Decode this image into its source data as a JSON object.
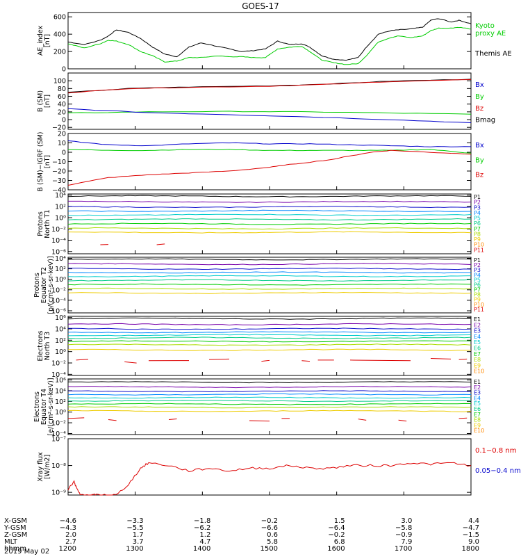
{
  "title": "GOES-17",
  "date_label": "2019 May 02",
  "colors": {
    "black": "#000000",
    "green": "#00cc00",
    "blue": "#0000cc",
    "red": "#dd0000",
    "p_cols": [
      "#000000",
      "#7700aa",
      "#1111cc",
      "#0088ff",
      "#00cccc",
      "#00cc88",
      "#00cc00",
      "#aadd00",
      "#eecc00",
      "#ff8800",
      "#dd0000"
    ]
  },
  "chart_data": [
    {
      "id": "ae",
      "type": "line",
      "ylabel": [
        "AE_index",
        "[nT]"
      ],
      "ylim": [
        0,
        650
      ],
      "yticks": [
        0,
        200,
        400,
        600
      ],
      "ytick_labels": [
        "0",
        "200",
        "400",
        "600"
      ],
      "legend": [
        {
          "text": "Kyoto",
          "color": "green"
        },
        {
          "text": "proxy AE",
          "color": "green"
        },
        {
          "text": "Themis AE",
          "color": "black"
        }
      ],
      "series": [
        {
          "name": "Themis AE",
          "color": "black",
          "x": [
            0,
            0.04,
            0.08,
            0.1,
            0.12,
            0.15,
            0.18,
            0.21,
            0.24,
            0.27,
            0.3,
            0.33,
            0.37,
            0.4,
            0.43,
            0.46,
            0.49,
            0.52,
            0.55,
            0.58,
            0.6,
            0.63,
            0.66,
            0.69,
            0.72,
            0.74,
            0.77,
            0.8,
            0.82,
            0.85,
            0.88,
            0.9,
            0.92,
            0.95,
            0.97,
            1.0
          ],
          "y": [
            310,
            280,
            330,
            380,
            450,
            420,
            350,
            250,
            170,
            140,
            250,
            300,
            260,
            230,
            200,
            210,
            230,
            320,
            280,
            290,
            250,
            150,
            110,
            100,
            130,
            250,
            400,
            440,
            450,
            460,
            480,
            560,
            580,
            540,
            560,
            520
          ]
        },
        {
          "name": "Kyoto proxy AE",
          "color": "green",
          "x": [
            0,
            0.04,
            0.08,
            0.1,
            0.12,
            0.15,
            0.18,
            0.21,
            0.24,
            0.27,
            0.3,
            0.33,
            0.37,
            0.4,
            0.43,
            0.46,
            0.49,
            0.52,
            0.55,
            0.58,
            0.6,
            0.63,
            0.66,
            0.69,
            0.72,
            0.74,
            0.77,
            0.8,
            0.82,
            0.85,
            0.88,
            0.9,
            0.92,
            0.95,
            0.97,
            1.0
          ],
          "y": [
            290,
            240,
            290,
            330,
            320,
            280,
            200,
            150,
            80,
            90,
            130,
            130,
            150,
            140,
            140,
            130,
            130,
            230,
            250,
            260,
            200,
            100,
            70,
            50,
            60,
            150,
            310,
            360,
            380,
            360,
            380,
            440,
            470,
            470,
            480,
            460
          ]
        }
      ]
    },
    {
      "id": "bsm",
      "type": "line",
      "ylabel": [
        "B (SM)",
        "[nT]"
      ],
      "ylim": [
        -25,
        120
      ],
      "yticks": [
        -20,
        0,
        20,
        40,
        60,
        80,
        100
      ],
      "ytick_labels": [
        "−20",
        "0",
        "20",
        "40",
        "60",
        "80",
        "100"
      ],
      "legend": [
        {
          "text": "Bx",
          "color": "blue"
        },
        {
          "text": "By",
          "color": "green"
        },
        {
          "text": "Bz",
          "color": "red"
        },
        {
          "text": "Bmag",
          "color": "black"
        }
      ],
      "series": [
        {
          "name": "Bmag",
          "color": "black",
          "x": [
            0,
            0.15,
            0.3,
            0.5,
            0.65,
            0.8,
            1.0
          ],
          "y": [
            70,
            80,
            84,
            87,
            92,
            99,
            104
          ]
        },
        {
          "name": "Bz",
          "color": "red",
          "x": [
            0,
            0.15,
            0.3,
            0.5,
            0.65,
            0.8,
            1.0
          ],
          "y": [
            69,
            80,
            83,
            86,
            91,
            98,
            103
          ]
        },
        {
          "name": "By",
          "color": "green",
          "x": [
            0,
            0.2,
            0.4,
            0.6,
            0.8,
            1.0
          ],
          "y": [
            17,
            20,
            21,
            20,
            17,
            14
          ]
        },
        {
          "name": "Bx",
          "color": "blue",
          "x": [
            0,
            0.2,
            0.4,
            0.6,
            0.8,
            1.0
          ],
          "y": [
            28,
            18,
            13,
            7,
            0,
            -8
          ]
        }
      ]
    },
    {
      "id": "bigrf",
      "type": "line",
      "ylabel": [
        "B (SM)−IGRF (SM)",
        "[nT]"
      ],
      "ylim": [
        -40,
        20
      ],
      "yticks": [
        -40,
        -30,
        -20,
        -10,
        0,
        10,
        20
      ],
      "ytick_labels": [
        "−40",
        "−30",
        "−20",
        "−10",
        "0",
        "10",
        "20"
      ],
      "legend": [
        {
          "text": "Bx",
          "color": "blue"
        },
        {
          "text": "By",
          "color": "green"
        },
        {
          "text": "Bz",
          "color": "red"
        }
      ],
      "series": [
        {
          "name": "Bx",
          "color": "blue",
          "x": [
            0,
            0.1,
            0.2,
            0.3,
            0.4,
            0.5,
            0.6,
            0.7,
            0.8,
            0.9,
            1.0
          ],
          "y": [
            12,
            8,
            7,
            9,
            10,
            9,
            9,
            8,
            7,
            6,
            6
          ]
        },
        {
          "name": "By",
          "color": "green",
          "x": [
            0,
            0.1,
            0.2,
            0.3,
            0.4,
            0.5,
            0.6,
            0.7,
            0.8,
            0.9,
            1.0
          ],
          "y": [
            3,
            2,
            2,
            3,
            3,
            2,
            2,
            2,
            2,
            3,
            -1
          ]
        },
        {
          "name": "Bz",
          "color": "red",
          "x": [
            0,
            0.1,
            0.2,
            0.3,
            0.4,
            0.5,
            0.55,
            0.65,
            0.75,
            0.8,
            0.9,
            1.0
          ],
          "y": [
            -35,
            -27,
            -24,
            -22,
            -20,
            -16,
            -13,
            -8,
            0,
            2,
            0,
            -2
          ]
        }
      ]
    },
    {
      "id": "protons_n",
      "type": "line",
      "log": true,
      "ylabel": [
        "Protons",
        "North T1"
      ],
      "ylim": [
        -6.4,
        4.2
      ],
      "yticks": [
        -6,
        -4,
        -2,
        0,
        2,
        4
      ],
      "ytick_labels": [
        "10⁻⁶",
        "10⁻⁴",
        "10⁻²",
        "10⁰",
        "10²",
        "10⁴"
      ],
      "legend_labels": [
        "P1",
        "P2",
        "P3",
        "P4",
        "P5",
        "P6",
        "P7",
        "P8",
        "P9",
        "P10",
        "P11"
      ],
      "channel_levels": [
        3.8,
        2.8,
        1.9,
        1.2,
        0.5,
        -0.3,
        -1.1,
        -1.9,
        -2.6
      ],
      "red_dashes": [
        [
          0.08,
          0.1,
          -4.8
        ],
        [
          0.22,
          0.24,
          -4.8
        ]
      ]
    },
    {
      "id": "protons_e",
      "type": "line",
      "log": true,
      "ylabel": [
        "Protons",
        "Equator T2",
        "[p/(cm²-s-sr-keV)]"
      ],
      "ylim": [
        -6.4,
        4.2
      ],
      "yticks": [
        -6,
        -4,
        -2,
        0,
        2,
        4
      ],
      "ytick_labels": [
        "10⁻⁶",
        "10⁻⁴",
        "10⁻²",
        "10⁰",
        "10²",
        "10⁴"
      ],
      "legend_labels": [
        "P1",
        "P2",
        "P3",
        "P4",
        "P5",
        "P6",
        "P7",
        "P8",
        "P9",
        "P10",
        "P11"
      ],
      "channel_levels": [
        3.8,
        2.9,
        2.0,
        1.3,
        0.6,
        -0.2,
        -1.0,
        -1.8,
        -2.6
      ],
      "red_dashes": []
    },
    {
      "id": "electrons_n",
      "type": "line",
      "log": true,
      "ylabel": [
        "Electrons",
        "North T3"
      ],
      "ylim": [
        -4.2,
        6.2
      ],
      "yticks": [
        -4,
        -2,
        0,
        2,
        4,
        6
      ],
      "ytick_labels": [
        "10⁻⁴",
        "10⁻²",
        "10⁰",
        "10²",
        "10⁴",
        "10⁶"
      ],
      "legend_labels": [
        "E1",
        "E2",
        "E3",
        "E4",
        "E5",
        "E6",
        "E7",
        "E8",
        "E9",
        "E10"
      ],
      "channel_levels": [
        5.8,
        4.8,
        4.0,
        3.4,
        2.9,
        2.4,
        1.8,
        1.2,
        0.3
      ],
      "red_dashes": [
        [
          0.02,
          0.05,
          -1.5
        ],
        [
          0.14,
          0.17,
          -1.8
        ],
        [
          0.2,
          0.3,
          -1.6
        ],
        [
          0.35,
          0.4,
          -1.4
        ],
        [
          0.48,
          0.5,
          -1.7
        ],
        [
          0.58,
          0.6,
          -1.6
        ],
        [
          0.62,
          0.66,
          -1.5
        ],
        [
          0.7,
          0.85,
          -1.5
        ],
        [
          0.9,
          0.95,
          -1.2
        ],
        [
          0.97,
          0.99,
          -1.4
        ]
      ]
    },
    {
      "id": "electrons_e",
      "type": "line",
      "log": true,
      "ylabel": [
        "Electrons",
        "Equator T4",
        "[e/(cm²-s-sr-keV)]"
      ],
      "ylim": [
        -4.2,
        6.2
      ],
      "yticks": [
        -4,
        -2,
        0,
        2,
        4,
        6
      ],
      "ytick_labels": [
        "10⁻⁴",
        "10⁻²",
        "10⁰",
        "10²",
        "10⁴",
        "10⁶"
      ],
      "legend_labels": [
        "E1",
        "E2",
        "E3",
        "E4",
        "E5",
        "E6",
        "E7",
        "E8",
        "E9",
        "E10"
      ],
      "channel_levels": [
        5.6,
        4.7,
        3.9,
        3.3,
        2.7,
        2.1,
        1.5,
        0.9,
        0.2
      ],
      "red_dashes": [
        [
          0.0,
          0.04,
          -1.2
        ],
        [
          0.1,
          0.12,
          -1.4
        ],
        [
          0.25,
          0.27,
          -1.4
        ],
        [
          0.45,
          0.5,
          -1.6
        ],
        [
          0.53,
          0.55,
          -1.2
        ],
        [
          0.72,
          0.74,
          -1.3
        ],
        [
          0.82,
          0.84,
          -1.5
        ],
        [
          0.97,
          0.99,
          -1.2
        ]
      ]
    },
    {
      "id": "xray",
      "type": "line",
      "log": true,
      "ylabel": [
        "Xray flux",
        "[W/m2]"
      ],
      "ylim": [
        -9.1,
        -7.0
      ],
      "yticks": [
        -9,
        -8,
        -7
      ],
      "ytick_labels": [
        "10⁻⁹",
        "10⁻⁸",
        "10⁻⁷"
      ],
      "legend": [
        {
          "text": "0.1−0.8 nm",
          "color": "red"
        },
        {
          "text": "0.05−0.4 nm",
          "color": "blue"
        }
      ],
      "series": [
        {
          "name": "0.1−0.8 nm",
          "color": "red",
          "x": [
            0.0,
            0.015,
            0.02,
            0.03,
            0.05,
            0.06,
            0.07,
            0.1,
            0.12,
            0.15,
            0.18,
            0.2,
            0.25,
            0.3,
            0.35,
            0.4,
            0.45,
            0.5,
            0.55,
            0.6,
            0.65,
            0.7,
            0.75,
            0.8,
            0.85,
            0.9,
            0.95,
            1.0
          ],
          "y": [
            -8.9,
            -8.6,
            -8.8,
            -9.1,
            -9.1,
            -9.1,
            -9.1,
            -9.1,
            -9.1,
            -8.7,
            -8.1,
            -7.9,
            -8.0,
            -8.2,
            -8.1,
            -8.2,
            -8.1,
            -8.1,
            -8.0,
            -8.1,
            -8.1,
            -8.0,
            -8.0,
            -8.0,
            -7.9,
            -7.95,
            -7.9,
            -8.0
          ]
        }
      ]
    }
  ],
  "x_axis": {
    "row_labels": [
      "X-GSM",
      "Y-GSM",
      "Z-GSM",
      "MLT",
      "hhmm"
    ],
    "columns": [
      [
        "−4.6",
        "−4.3",
        "2.0",
        "2.7",
        "1200"
      ],
      [
        "−3.3",
        "−5.5",
        "1.7",
        "3.7",
        "1300"
      ],
      [
        "−1.8",
        "−6.2",
        "1.2",
        "4.7",
        "1400"
      ],
      [
        "−0.2",
        "−6.6",
        "0.6",
        "5.8",
        "1500"
      ],
      [
        "1.5",
        "−6.4",
        "−0.2",
        "6.8",
        "1600"
      ],
      [
        "3.0",
        "−5.8",
        "−0.9",
        "7.9",
        "1700"
      ],
      [
        "4.4",
        "−4.7",
        "−1.5",
        "9.0",
        "1800"
      ]
    ]
  }
}
